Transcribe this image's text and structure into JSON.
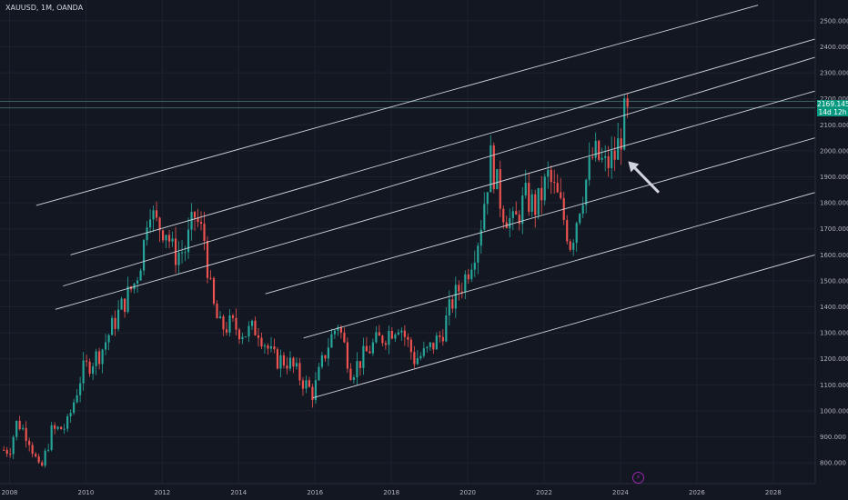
{
  "header": {
    "symbol_line": "XAUUSD, 1M, OANDA"
  },
  "price_badge": {
    "price": "2169.145",
    "countdown": "14d 12h"
  },
  "event_icon": "lightning-icon",
  "colors": {
    "background": "#131722",
    "up": "#26a69a",
    "down": "#ef5350",
    "lines": "#d1d4dc",
    "badge": "#089981"
  },
  "chart_data": {
    "type": "candlestick",
    "title": "XAUUSD, 1M, OANDA",
    "ylim": [
      720,
      2580
    ],
    "xlim": [
      2007.75,
      2029.1
    ],
    "y_ticks": [
      800,
      900,
      1000,
      1100,
      1200,
      1300,
      1400,
      1500,
      1600,
      1700,
      1800,
      1900,
      2000,
      2100,
      2200,
      2300,
      2400,
      2500
    ],
    "y_tick_labels": [
      "800.000",
      "900.000",
      "1000.000",
      "1100.000",
      "1200.000",
      "1300.000",
      "1400.000",
      "1500.000",
      "1600.000",
      "1700.000",
      "1800.000",
      "1900.000",
      "2000.000",
      "2100.000",
      "2200.000",
      "2300.000",
      "2400.000",
      "2500.000"
    ],
    "x_ticks": [
      2008,
      2010,
      2012,
      2014,
      2016,
      2018,
      2020,
      2022,
      2024,
      2026,
      2028
    ],
    "x_tick_labels": [
      "2008",
      "2010",
      "2012",
      "2014",
      "2016",
      "2018",
      "2020",
      "2022",
      "2024",
      "2026",
      "2028"
    ],
    "close_anchors": [
      [
        2008.0,
        850
      ],
      [
        2008.2,
        960
      ],
      [
        2008.5,
        900
      ],
      [
        2008.8,
        760
      ],
      [
        2009.1,
        920
      ],
      [
        2009.5,
        940
      ],
      [
        2009.9,
        1150
      ],
      [
        2010.4,
        1230
      ],
      [
        2010.9,
        1390
      ],
      [
        2011.3,
        1500
      ],
      [
        2011.5,
        1620
      ],
      [
        2011.65,
        1820
      ],
      [
        2011.8,
        1720
      ],
      [
        2012.1,
        1700
      ],
      [
        2012.3,
        1600
      ],
      [
        2012.6,
        1620
      ],
      [
        2012.85,
        1750
      ],
      [
        2013.1,
        1660
      ],
      [
        2013.3,
        1420
      ],
      [
        2013.5,
        1320
      ],
      [
        2013.8,
        1330
      ],
      [
        2014.2,
        1300
      ],
      [
        2014.5,
        1320
      ],
      [
        2014.9,
        1200
      ],
      [
        2015.3,
        1190
      ],
      [
        2015.6,
        1130
      ],
      [
        2015.95,
        1065
      ],
      [
        2016.3,
        1240
      ],
      [
        2016.6,
        1340
      ],
      [
        2016.95,
        1150
      ],
      [
        2017.5,
        1250
      ],
      [
        2017.9,
        1300
      ],
      [
        2018.2,
        1340
      ],
      [
        2018.6,
        1200
      ],
      [
        2018.9,
        1220
      ],
      [
        2019.3,
        1290
      ],
      [
        2019.6,
        1420
      ],
      [
        2019.95,
        1520
      ],
      [
        2020.3,
        1680
      ],
      [
        2020.6,
        1970
      ],
      [
        2020.9,
        1780
      ],
      [
        2021.2,
        1710
      ],
      [
        2021.5,
        1820
      ],
      [
        2021.8,
        1780
      ],
      [
        2022.1,
        1900
      ],
      [
        2022.4,
        1800
      ],
      [
        2022.7,
        1640
      ],
      [
        2022.95,
        1810
      ],
      [
        2023.3,
        1990
      ],
      [
        2023.6,
        1940
      ],
      [
        2023.85,
        1980
      ],
      [
        2024.0,
        2050
      ],
      [
        2024.15,
        2169
      ]
    ],
    "channel_lines": [
      {
        "x": [
          2008.7,
          2027.6
        ],
        "y": [
          1790,
          2560
        ]
      },
      {
        "x": [
          2009.6,
          2029.1
        ],
        "y": [
          1600,
          2430
        ]
      },
      {
        "x": [
          2009.4,
          2029.1
        ],
        "y": [
          1480,
          2360
        ]
      },
      {
        "x": [
          2009.2,
          2029.1
        ],
        "y": [
          1390,
          2230
        ]
      },
      {
        "x": [
          2014.7,
          2029.1
        ],
        "y": [
          1450,
          2050
        ]
      },
      {
        "x": [
          2015.7,
          2029.1
        ],
        "y": [
          1280,
          1840
        ]
      },
      {
        "x": [
          2015.95,
          2029.1
        ],
        "y": [
          1050,
          1600
        ]
      }
    ],
    "horizontal_lines": [
      2190,
      2165
    ],
    "last_price": 2169.145,
    "arrow": {
      "from": [
        2025.0,
        1840
      ],
      "to": [
        2024.2,
        1960
      ]
    }
  }
}
